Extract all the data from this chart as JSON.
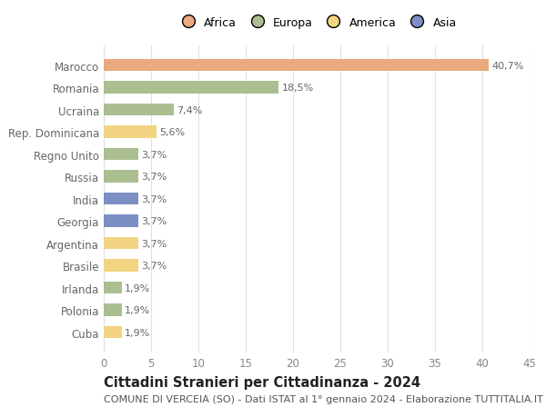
{
  "categories": [
    "Marocco",
    "Romania",
    "Ucraina",
    "Rep. Dominicana",
    "Regno Unito",
    "Russia",
    "India",
    "Georgia",
    "Argentina",
    "Brasile",
    "Irlanda",
    "Polonia",
    "Cuba"
  ],
  "values": [
    40.7,
    18.5,
    7.4,
    5.6,
    3.7,
    3.7,
    3.7,
    3.7,
    3.7,
    3.7,
    1.9,
    1.9,
    1.9
  ],
  "labels": [
    "40,7%",
    "18,5%",
    "7,4%",
    "5,6%",
    "3,7%",
    "3,7%",
    "3,7%",
    "3,7%",
    "3,7%",
    "3,7%",
    "1,9%",
    "1,9%",
    "1,9%"
  ],
  "continent": [
    "Africa",
    "Europa",
    "Europa",
    "America",
    "Europa",
    "Europa",
    "Asia",
    "Asia",
    "America",
    "America",
    "Europa",
    "Europa",
    "America"
  ],
  "colors": {
    "Africa": "#EAA97E",
    "Europa": "#ABBE90",
    "America": "#F2D482",
    "Asia": "#7B8FC4"
  },
  "legend_labels": [
    "Africa",
    "Europa",
    "America",
    "Asia"
  ],
  "legend_colors": [
    "#EAA97E",
    "#ABBE90",
    "#F2D482",
    "#7B8FC4"
  ],
  "xlim": [
    0,
    45
  ],
  "xticks": [
    0,
    5,
    10,
    15,
    20,
    25,
    30,
    35,
    40,
    45
  ],
  "title": "Cittadini Stranieri per Cittadinanza - 2024",
  "subtitle": "COMUNE DI VERCEIA (SO) - Dati ISTAT al 1° gennaio 2024 - Elaborazione TUTTITALIA.IT",
  "background_color": "#ffffff",
  "grid_color": "#e0e0e0",
  "bar_height": 0.55,
  "label_fontsize": 8,
  "ytick_fontsize": 8.5,
  "xtick_fontsize": 8.5,
  "title_fontsize": 10.5,
  "subtitle_fontsize": 8,
  "label_color": "#666666",
  "ytick_color": "#666666",
  "xtick_color": "#888888"
}
